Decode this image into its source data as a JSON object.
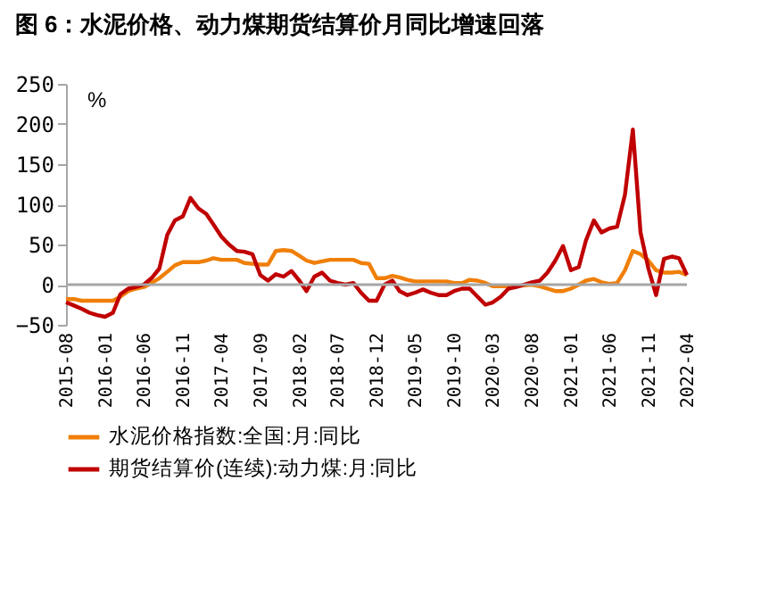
{
  "chart_data": {
    "type": "line",
    "title": "图 6：水泥价格、动力煤期货结算价月同比增速回落",
    "ylabel": "%",
    "x": [
      "2015-08",
      "2015-09",
      "2015-10",
      "2015-11",
      "2015-12",
      "2016-01",
      "2016-02",
      "2016-03",
      "2016-04",
      "2016-05",
      "2016-06",
      "2016-07",
      "2016-08",
      "2016-09",
      "2016-10",
      "2016-11",
      "2016-12",
      "2017-01",
      "2017-02",
      "2017-03",
      "2017-04",
      "2017-05",
      "2017-06",
      "2017-07",
      "2017-08",
      "2017-09",
      "2017-10",
      "2017-11",
      "2017-12",
      "2018-01",
      "2018-02",
      "2018-03",
      "2018-04",
      "2018-05",
      "2018-06",
      "2018-07",
      "2018-08",
      "2018-09",
      "2018-10",
      "2018-11",
      "2018-12",
      "2019-01",
      "2019-02",
      "2019-03",
      "2019-04",
      "2019-05",
      "2019-06",
      "2019-07",
      "2019-08",
      "2019-09",
      "2019-10",
      "2019-11",
      "2019-12",
      "2020-01",
      "2020-02",
      "2020-03",
      "2020-04",
      "2020-05",
      "2020-06",
      "2020-07",
      "2020-08",
      "2020-09",
      "2020-10",
      "2020-11",
      "2020-12",
      "2021-01",
      "2021-02",
      "2021-03",
      "2021-04",
      "2021-05",
      "2021-06",
      "2021-07",
      "2021-08",
      "2021-09",
      "2021-10",
      "2021-11",
      "2021-12",
      "2022-01",
      "2022-02",
      "2022-03",
      "2022-04"
    ],
    "series": [
      {
        "name": "水泥价格指数:全国:月:同比",
        "color": "#f07f09",
        "values": [
          -18,
          -18,
          -20,
          -20,
          -20,
          -20,
          -20,
          -15,
          -8,
          -5,
          -3,
          2,
          8,
          16,
          24,
          28,
          28,
          28,
          30,
          33,
          31,
          31,
          31,
          27,
          26,
          25,
          25,
          42,
          43,
          42,
          36,
          30,
          27,
          29,
          31,
          31,
          31,
          31,
          27,
          26,
          8,
          8,
          11,
          9,
          6,
          4,
          4,
          4,
          4,
          4,
          2,
          2,
          6,
          5,
          2,
          -2,
          -2,
          -2,
          -2,
          -1,
          0,
          -2,
          -5,
          -8,
          -8,
          -5,
          0,
          5,
          7,
          3,
          1,
          2,
          18,
          42,
          38,
          30,
          18,
          15,
          15,
          16,
          12
        ]
      },
      {
        "name": "期货结算价(连续):动力煤:月:同比",
        "color": "#c00000",
        "values": [
          -22,
          -26,
          -30,
          -35,
          -38,
          -40,
          -35,
          -12,
          -5,
          -3,
          0,
          8,
          20,
          62,
          80,
          85,
          108,
          95,
          88,
          75,
          60,
          50,
          42,
          41,
          38,
          12,
          5,
          13,
          10,
          17,
          5,
          -8,
          10,
          15,
          5,
          2,
          0,
          2,
          -10,
          -20,
          -20,
          0,
          5,
          -8,
          -13,
          -10,
          -6,
          -10,
          -13,
          -13,
          -8,
          -5,
          -5,
          -15,
          -25,
          -22,
          -15,
          -5,
          -3,
          0,
          3,
          5,
          15,
          30,
          48,
          18,
          22,
          55,
          80,
          65,
          70,
          72,
          112,
          193,
          65,
          20,
          -13,
          32,
          35,
          33,
          12
        ]
      }
    ],
    "ylim": [
      -50,
      250
    ],
    "yticks": [
      -50,
      0,
      50,
      100,
      150,
      200,
      250
    ],
    "xlim": [
      "2015-08",
      "2022-04"
    ],
    "xticks": [
      "2015-08",
      "2016-01",
      "2016-06",
      "2016-11",
      "2017-04",
      "2017-09",
      "2018-02",
      "2018-07",
      "2018-12",
      "2019-05",
      "2019-10",
      "2020-03",
      "2020-08",
      "2021-01",
      "2021-06",
      "2021-11",
      "2022-04"
    ],
    "ref_lines": [
      {
        "axis": "y",
        "value": 0,
        "color": "#a6a6a6"
      }
    ],
    "grid": false,
    "legend": "bottom",
    "marker": "none",
    "line_style": "solid"
  }
}
